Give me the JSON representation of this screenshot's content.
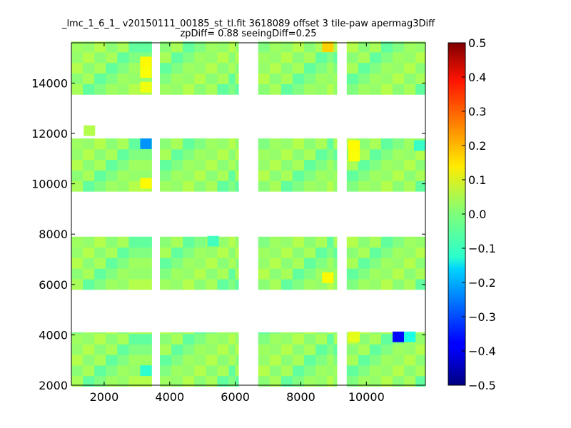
{
  "chart_data": {
    "type": "heatmap",
    "title_line1": "_lmc_1_6_1_ v20150111_00185_st_tl.fit 3618089 offset 3 tile-paw apermag3Diff",
    "title_line2": "zpDiff= 0.88 seeingDiff=0.25",
    "xlim": [
      1000,
      11800
    ],
    "ylim": [
      2000,
      15600
    ],
    "x_ticks": [
      2000,
      4000,
      6000,
      8000,
      10000
    ],
    "y_ticks": [
      2000,
      4000,
      6000,
      8000,
      10000,
      12000,
      14000
    ],
    "colorbar": {
      "colormap": "jet",
      "vmin": -0.5,
      "vmax": 0.5,
      "ticks": [
        -0.5,
        -0.4,
        -0.3,
        -0.2,
        -0.1,
        0.0,
        0.1,
        0.2,
        0.3,
        0.4,
        0.5
      ],
      "tick_labels": [
        "−0.5",
        "−0.4",
        "−0.3",
        "−0.2",
        "−0.1",
        "0.0",
        "0.1",
        "0.2",
        "0.3",
        "0.4",
        "0.5"
      ]
    },
    "grid": false,
    "cell_size": [
      350,
      420
    ],
    "detector_columns": [
      {
        "x0": 1000,
        "x1": 3100
      },
      {
        "x0": 3100,
        "x1": 3450
      },
      {
        "x0": 3700,
        "x1": 6000
      },
      {
        "x0": 6000,
        "x1": 6100
      },
      {
        "x0": 6700,
        "x1": 9000
      },
      {
        "x0": 9000,
        "x1": 9100
      },
      {
        "x0": 9400,
        "x1": 11800
      }
    ],
    "detector_rows": [
      {
        "y0": 1950,
        "y1": 4100
      },
      {
        "y0": 5800,
        "y1": 7900
      },
      {
        "y0": 9700,
        "y1": 11800
      },
      {
        "y0": 13550,
        "y1": 15650
      }
    ],
    "base_values": [
      0.04,
      0.02,
      -0.03,
      0.05,
      0.0,
      0.01,
      0.03
    ],
    "special_cells": [
      {
        "x": 1550,
        "y": 12110,
        "value": 0.05
      },
      {
        "x": 3275,
        "y": 11590,
        "value": -0.23
      },
      {
        "x": 3275,
        "y": 10020,
        "value": 0.13
      },
      {
        "x": 3275,
        "y": 14840,
        "value": 0.13
      },
      {
        "x": 3275,
        "y": 14420,
        "value": 0.12
      },
      {
        "x": 3275,
        "y": 13840,
        "value": 0.11
      },
      {
        "x": 8825,
        "y": 15440,
        "value": 0.17
      },
      {
        "x": 8825,
        "y": 6270,
        "value": 0.13
      },
      {
        "x": 9625,
        "y": 11520,
        "value": 0.13
      },
      {
        "x": 9625,
        "y": 11100,
        "value": 0.12
      },
      {
        "x": 9625,
        "y": 3920,
        "value": 0.1
      },
      {
        "x": 10975,
        "y": 3920,
        "value": -0.37
      },
      {
        "x": 11325,
        "y": 3920,
        "value": -0.1
      },
      {
        "x": 3275,
        "y": 2580,
        "value": -0.08
      },
      {
        "x": 11625,
        "y": 11520,
        "value": -0.07
      },
      {
        "x": 5325,
        "y": 7720,
        "value": -0.06
      }
    ]
  }
}
